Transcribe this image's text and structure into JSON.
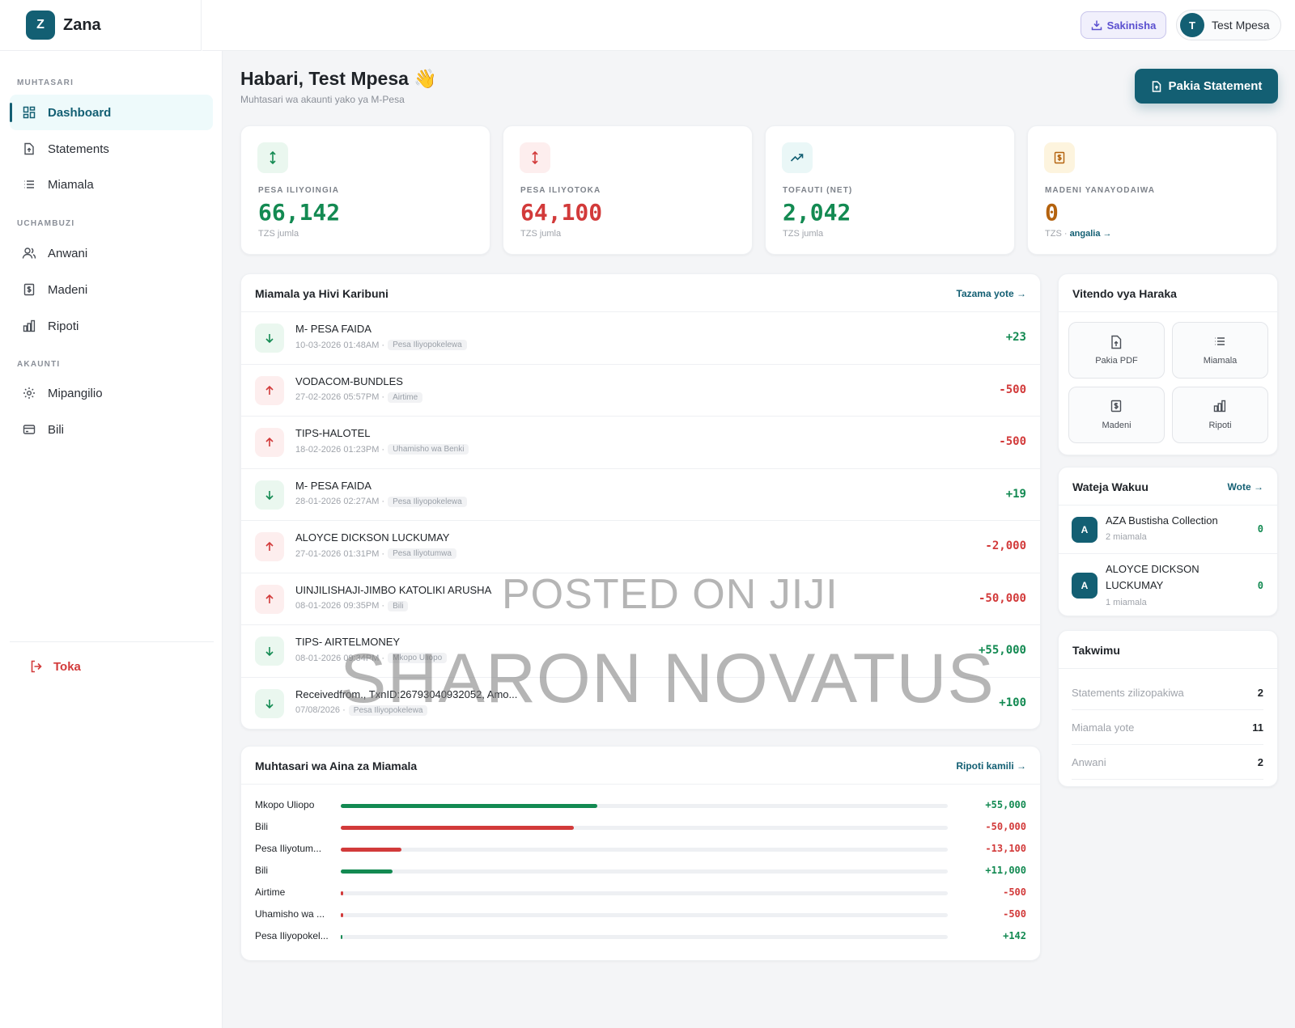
{
  "app": {
    "logo_letter": "Z",
    "name": "Zana"
  },
  "sidebar": {
    "sections": [
      {
        "title": "MUHTASARI"
      },
      {
        "title": "UCHAMBUZI"
      },
      {
        "title": "AKAUNTI"
      }
    ],
    "items": [
      {
        "label": "Dashboard",
        "icon": "dashboard-icon",
        "active": true
      },
      {
        "label": "Statements",
        "icon": "file-upload-icon"
      },
      {
        "label": "Miamala",
        "icon": "list-icon"
      },
      {
        "label": "Anwani",
        "icon": "users-icon"
      },
      {
        "label": "Madeni",
        "icon": "receipt-icon"
      },
      {
        "label": "Ripoti",
        "icon": "bar-chart-icon"
      },
      {
        "label": "Mipangilio",
        "icon": "gear-icon"
      },
      {
        "label": "Bili",
        "icon": "credit-card-icon"
      }
    ],
    "logout_label": "Toka"
  },
  "topbar": {
    "sync_label": "Sakinisha",
    "user_initial": "T",
    "user_name": "Test Mpesa"
  },
  "header": {
    "greeting": "Habari, Test Mpesa 👋",
    "subtitle": "Muhtasari wa akaunti yako ya M-Pesa",
    "upload_button": "Pakia Statement"
  },
  "stats": [
    {
      "label": "PESA ILIYOINGIA",
      "value": "66,142",
      "note": "TZS jumla",
      "color": "#138a52",
      "icon": "arrows-vertical-icon"
    },
    {
      "label": "PESA ILIYOTOKA",
      "value": "64,100",
      "note": "TZS jumla",
      "color": "#d23a3a",
      "icon": "arrows-vertical-icon"
    },
    {
      "label": "TOFAUTI (NET)",
      "value": "2,042",
      "note": "TZS jumla",
      "color": "#138a52",
      "icon": "trending-up-icon"
    },
    {
      "label": "MADENI YANAYODAIWA",
      "value": "0",
      "note_prefix": "TZS · ",
      "note_link": "angalia →",
      "color": "#b4620e",
      "icon": "receipt-icon"
    }
  ],
  "recent": {
    "title": "Miamala ya Hivi Karibuni",
    "link": "Tazama yote →",
    "rows": [
      {
        "name": "M- PESA FAIDA",
        "date": "10-03-2026 01:48AM ·",
        "tag": "Pesa Iliyopokelewa",
        "amount": "+23",
        "dir": "in"
      },
      {
        "name": "VODACOM-BUNDLES",
        "date": "27-02-2026 05:57PM ·",
        "tag": "Airtime",
        "amount": "-500",
        "dir": "out"
      },
      {
        "name": "TIPS-HALOTEL",
        "date": "18-02-2026 01:23PM ·",
        "tag": "Uhamisho wa Benki",
        "amount": "-500",
        "dir": "out"
      },
      {
        "name": "M- PESA FAIDA",
        "date": "28-01-2026 02:27AM ·",
        "tag": "Pesa Iliyopokelewa",
        "amount": "+19",
        "dir": "in"
      },
      {
        "name": "ALOYCE DICKSON LUCKUMAY",
        "date": "27-01-2026 01:31PM ·",
        "tag": "Pesa Iliyotumwa",
        "amount": "-2,000",
        "dir": "out"
      },
      {
        "name": "UINJILISHAJI-JIMBO KATOLIKI ARUSHA",
        "date": "08-01-2026 09:35PM ·",
        "tag": "Bili",
        "amount": "-50,000",
        "dir": "out"
      },
      {
        "name": "TIPS- AIRTELMONEY",
        "date": "08-01-2026 09:34PM ·",
        "tag": "Mkopo Uliopo",
        "amount": "+55,000",
        "dir": "in"
      },
      {
        "name": "Receivedfrom., TxnID:26793040932052, Amo...",
        "date": "07/08/2026 ·",
        "tag": "Pesa Iliyopokelewa",
        "amount": "+100",
        "dir": "in"
      }
    ]
  },
  "summary": {
    "title": "Muhtasari wa Aina za Miamala",
    "link": "Ripoti kamili →",
    "rows": [
      {
        "label": "Mkopo Uliopo",
        "value": "+55,000",
        "fraction": 0.422,
        "color": "#138a52"
      },
      {
        "label": "Bili",
        "value": "-50,000",
        "fraction": 0.384,
        "color": "#d23a3a"
      },
      {
        "label": "Pesa Iliyotum...",
        "value": "-13,100",
        "fraction": 0.1,
        "color": "#d23a3a"
      },
      {
        "label": "Bili",
        "value": "+11,000",
        "fraction": 0.085,
        "color": "#138a52"
      },
      {
        "label": "Airtime",
        "value": "-500",
        "fraction": 0.004,
        "color": "#d23a3a"
      },
      {
        "label": "Uhamisho wa ...",
        "value": "-500",
        "fraction": 0.004,
        "color": "#d23a3a"
      },
      {
        "label": "Pesa Iliyopokel...",
        "value": "+142",
        "fraction": 0.002,
        "color": "#138a52"
      }
    ]
  },
  "quick_actions": {
    "title": "Vitendo vya Haraka",
    "items": [
      {
        "label": "Pakia PDF",
        "icon": "file-upload-icon"
      },
      {
        "label": "Miamala",
        "icon": "list-icon"
      },
      {
        "label": "Madeni",
        "icon": "receipt-icon"
      },
      {
        "label": "Ripoti",
        "icon": "bar-chart-icon"
      }
    ]
  },
  "clients": {
    "title": "Wateja Wakuu",
    "link": "Wote →",
    "rows": [
      {
        "initial": "A",
        "name": "AZA Bustisha Collection",
        "sub": "2 miamala",
        "value": "0"
      },
      {
        "initial": "A",
        "name": "ALOYCE DICKSON LUCKUMAY",
        "sub": "1 miamala",
        "value": "0"
      }
    ]
  },
  "takwimu": {
    "title": "Takwimu",
    "rows": [
      {
        "label": "Statements zilizopakiwa",
        "value": "2"
      },
      {
        "label": "Miamala yote",
        "value": "11"
      },
      {
        "label": "Anwani",
        "value": "2"
      }
    ]
  },
  "watermark": {
    "line1": "POSTED ON JIJI",
    "line2": "SHARON NOVATUS"
  }
}
